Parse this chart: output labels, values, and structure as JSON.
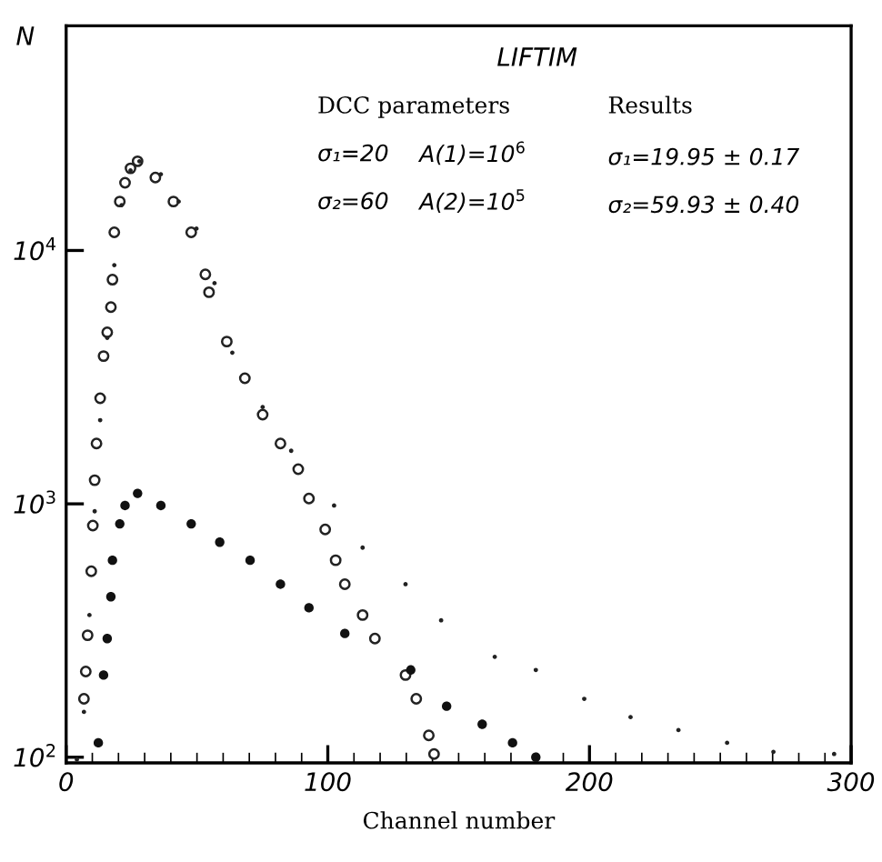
{
  "chart_data": {
    "type": "scatter",
    "title": "LIFTIM",
    "xlabel": "Channel number",
    "ylabel": "N",
    "annotations": [
      "DCC parameters",
      "σ₁=20",
      "A(1)=10$^{6}$",
      "σ₂=60",
      "A(2)=10$^{5}$",
      "Results",
      "σ₁=19.95 ± 0.17",
      "σ₂=59.93 ± 0.40"
    ],
    "log": "y",
    "grid": false,
    "marker": "circle",
    "xlim": [
      0,
      300
    ],
    "xticks": [
      0,
      100,
      200,
      300
    ],
    "ylim": [
      95,
      77000
    ],
    "yticks": [
      {
        "value": 100,
        "label": "10$^{2}$"
      },
      {
        "value": 1000,
        "label": "10$^{3}$"
      },
      {
        "value": 10000,
        "label": "10$^{4}$"
      }
    ],
    "series": [
      {
        "color": "#222222",
        "x": [
          6.8,
          7.5,
          8.2,
          9.6,
          10.2,
          10.9,
          11.6,
          13,
          14.3,
          15.7,
          17.1,
          17.7,
          18.4,
          20.5,
          22.5,
          24.6,
          27.3,
          34.1,
          41,
          47.8,
          53.2,
          54.6,
          61.4,
          68.3,
          75.1,
          81.9,
          88.7,
          92.8,
          99,
          103,
          106.5,
          113.3,
          118,
          129.7,
          133.8,
          138.6,
          140.6
        ],
        "values": [
          170,
          218,
          303,
          542,
          821,
          1240,
          1730,
          2610,
          3830,
          4750,
          5980,
          7670,
          11800,
          15600,
          18500,
          21100,
          22500,
          19400,
          15600,
          11800,
          8050,
          6840,
          4370,
          3130,
          2250,
          1730,
          1370,
          1050,
          793,
          599,
          482,
          364,
          294,
          211,
          170,
          122,
          103
        ]
      },
      {
        "color": "#222222",
        "x": [
          4.1,
          6.8,
          8.9,
          10.9,
          13,
          15.7,
          18.4,
          21.2,
          24.6,
          28,
          36.2,
          43,
          49.8,
          56.7,
          63.5,
          75.1,
          86,
          102.4,
          113.3,
          129.7,
          143.3,
          163.8,
          179.5,
          198,
          215.7,
          234,
          252.6,
          270.3,
          293.5
        ],
        "values": [
          98,
          151,
          364,
          935,
          2140,
          4520,
          8750,
          15100,
          20700,
          22500,
          20000,
          15600,
          12200,
          7430,
          3950,
          2410,
          1620,
          985,
          672,
          482,
          347,
          249,
          221,
          170,
          144,
          128,
          114,
          105,
          103
        ]
      },
      {
        "color": "#111111",
        "x": [
          12.3,
          14.3,
          15.7,
          17.1,
          17.7,
          20.5,
          22.5,
          27.3,
          36.2,
          47.8,
          58.7,
          70.3,
          81.9,
          92.8,
          106.5,
          131.7,
          145.4,
          159,
          170.6,
          179.5
        ],
        "values": [
          114,
          211,
          294,
          430,
          599,
          834,
          985,
          1100,
          985,
          834,
          706,
          599,
          482,
          389,
          308,
          221,
          159,
          135,
          114,
          100
        ]
      }
    ]
  }
}
